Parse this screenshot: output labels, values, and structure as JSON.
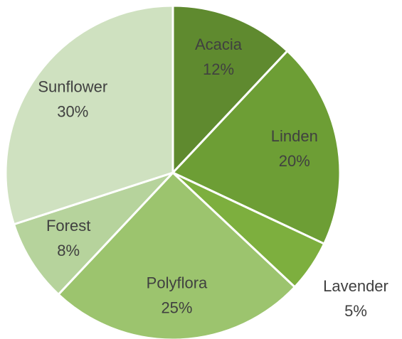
{
  "chart_data": {
    "type": "pie",
    "categories": [
      "Acacia",
      "Linden",
      "Lavender",
      "Polyflora",
      "Forest",
      "Sunflower"
    ],
    "values": [
      12,
      20,
      5,
      25,
      8,
      30
    ],
    "value_labels": [
      "12%",
      "20%",
      "5%",
      "25%",
      "8%",
      "30%"
    ],
    "colors": [
      "#5f8a2f",
      "#6d9e35",
      "#7daf3e",
      "#9cc46e",
      "#b6d39c",
      "#cfe1c0"
    ]
  }
}
